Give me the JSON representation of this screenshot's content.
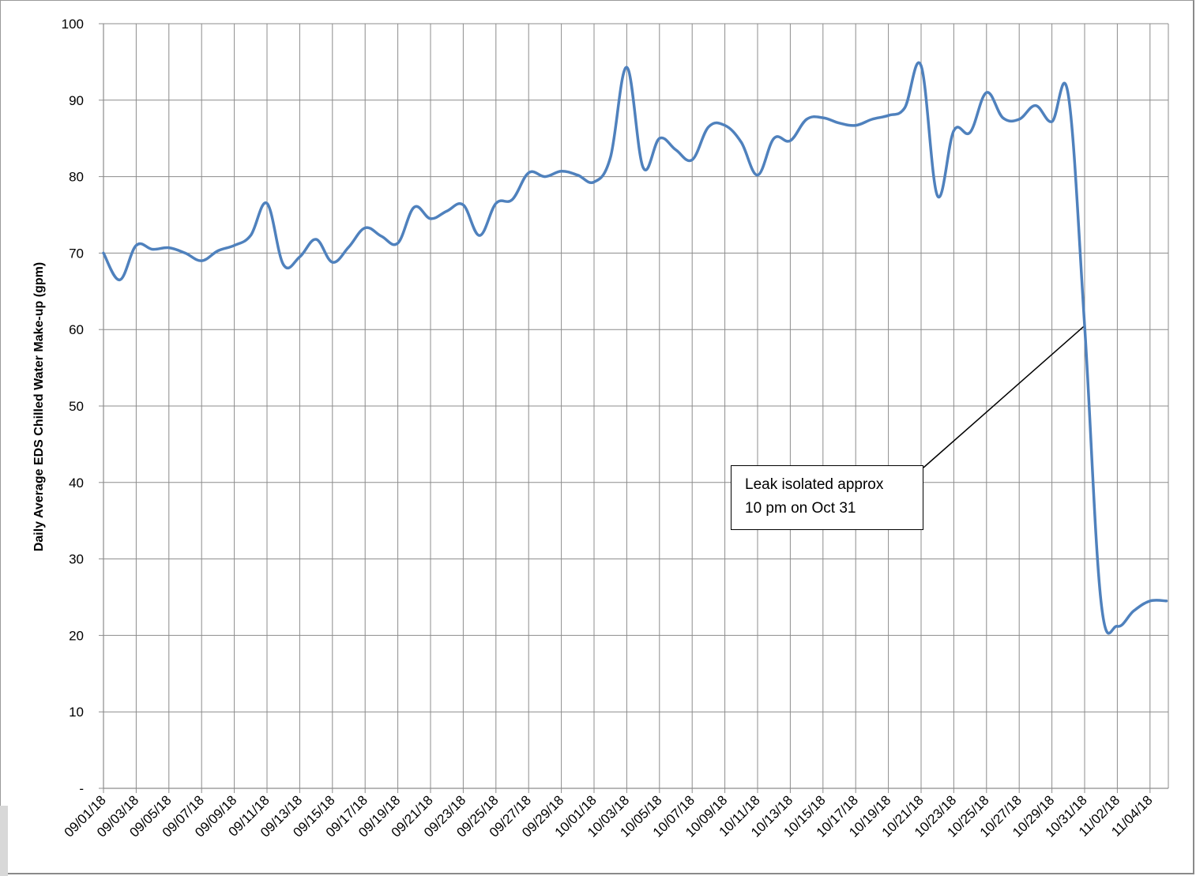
{
  "chart_data": {
    "type": "line",
    "title": "",
    "xlabel": "",
    "ylabel": "Daily Average EDS Chilled Water Make-up (gpm)",
    "ylim": [
      0,
      100
    ],
    "y_ticks": [
      {
        "value": 0,
        "label": "-"
      },
      {
        "value": 10,
        "label": "10"
      },
      {
        "value": 20,
        "label": "20"
      },
      {
        "value": 30,
        "label": "30"
      },
      {
        "value": 40,
        "label": "40"
      },
      {
        "value": 50,
        "label": "50"
      },
      {
        "value": 60,
        "label": "60"
      },
      {
        "value": 70,
        "label": "70"
      },
      {
        "value": 80,
        "label": "80"
      },
      {
        "value": 90,
        "label": "90"
      },
      {
        "value": 100,
        "label": "100"
      }
    ],
    "x_tick_labels": [
      "09/01/18",
      "09/03/18",
      "09/05/18",
      "09/07/18",
      "09/09/18",
      "09/11/18",
      "09/13/18",
      "09/15/18",
      "09/17/18",
      "09/19/18",
      "09/21/18",
      "09/23/18",
      "09/25/18",
      "09/27/18",
      "09/29/18",
      "10/01/18",
      "10/03/18",
      "10/05/18",
      "10/07/18",
      "10/09/18",
      "10/11/18",
      "10/13/18",
      "10/15/18",
      "10/17/18",
      "10/19/18",
      "10/21/18",
      "10/23/18",
      "10/25/18",
      "10/27/18",
      "10/29/18",
      "10/31/18",
      "11/02/18",
      "11/04/18"
    ],
    "grid": true,
    "line_color": "#4f81bd",
    "series": [
      {
        "x": [
          "09/01/18",
          "09/02/18",
          "09/03/18",
          "09/04/18",
          "09/05/18",
          "09/06/18",
          "09/07/18",
          "09/08/18",
          "09/09/18",
          "09/10/18",
          "09/11/18",
          "09/12/18",
          "09/13/18",
          "09/14/18",
          "09/15/18",
          "09/16/18",
          "09/17/18",
          "09/18/18",
          "09/19/18",
          "09/20/18",
          "09/21/18",
          "09/22/18",
          "09/23/18",
          "09/24/18",
          "09/25/18",
          "09/26/18",
          "09/27/18",
          "09/28/18",
          "09/29/18",
          "09/30/18",
          "10/01/18",
          "10/02/18",
          "10/03/18",
          "10/04/18",
          "10/05/18",
          "10/06/18",
          "10/07/18",
          "10/08/18",
          "10/09/18",
          "10/10/18",
          "10/11/18",
          "10/12/18",
          "10/13/18",
          "10/14/18",
          "10/15/18",
          "10/16/18",
          "10/17/18",
          "10/18/18",
          "10/19/18",
          "10/20/18",
          "10/21/18",
          "10/22/18",
          "10/23/18",
          "10/24/18",
          "10/25/18",
          "10/26/18",
          "10/27/18",
          "10/28/18",
          "10/29/18",
          "10/30/18",
          "10/31/18",
          "11/01/18",
          "11/02/18",
          "11/03/18",
          "11/04/18",
          "11/05/18"
        ],
        "y": [
          70.0,
          66.5,
          71.0,
          70.5,
          70.7,
          70.0,
          69.0,
          70.3,
          71.0,
          72.3,
          76.5,
          68.5,
          69.5,
          71.8,
          68.8,
          70.8,
          73.3,
          72.2,
          71.3,
          76.0,
          74.5,
          75.5,
          76.3,
          72.3,
          76.5,
          77.0,
          80.5,
          80.0,
          80.7,
          80.2,
          79.3,
          82.5,
          94.3,
          81.2,
          85.0,
          83.5,
          82.2,
          86.5,
          86.7,
          84.5,
          80.2,
          85.0,
          84.7,
          87.5,
          87.7,
          87.0,
          86.7,
          87.5,
          88.0,
          89.0,
          94.5,
          77.5,
          86.0,
          85.8,
          91.0,
          87.7,
          87.5,
          89.3,
          87.2,
          90.7,
          60.5,
          24.5,
          21.2,
          23.2,
          24.5,
          24.5
        ]
      }
    ],
    "annotation": {
      "lines": [
        "Leak isolated approx",
        "10 pm on Oct 31"
      ],
      "target": {
        "x": "10/31/18",
        "y": 60.5
      }
    }
  }
}
